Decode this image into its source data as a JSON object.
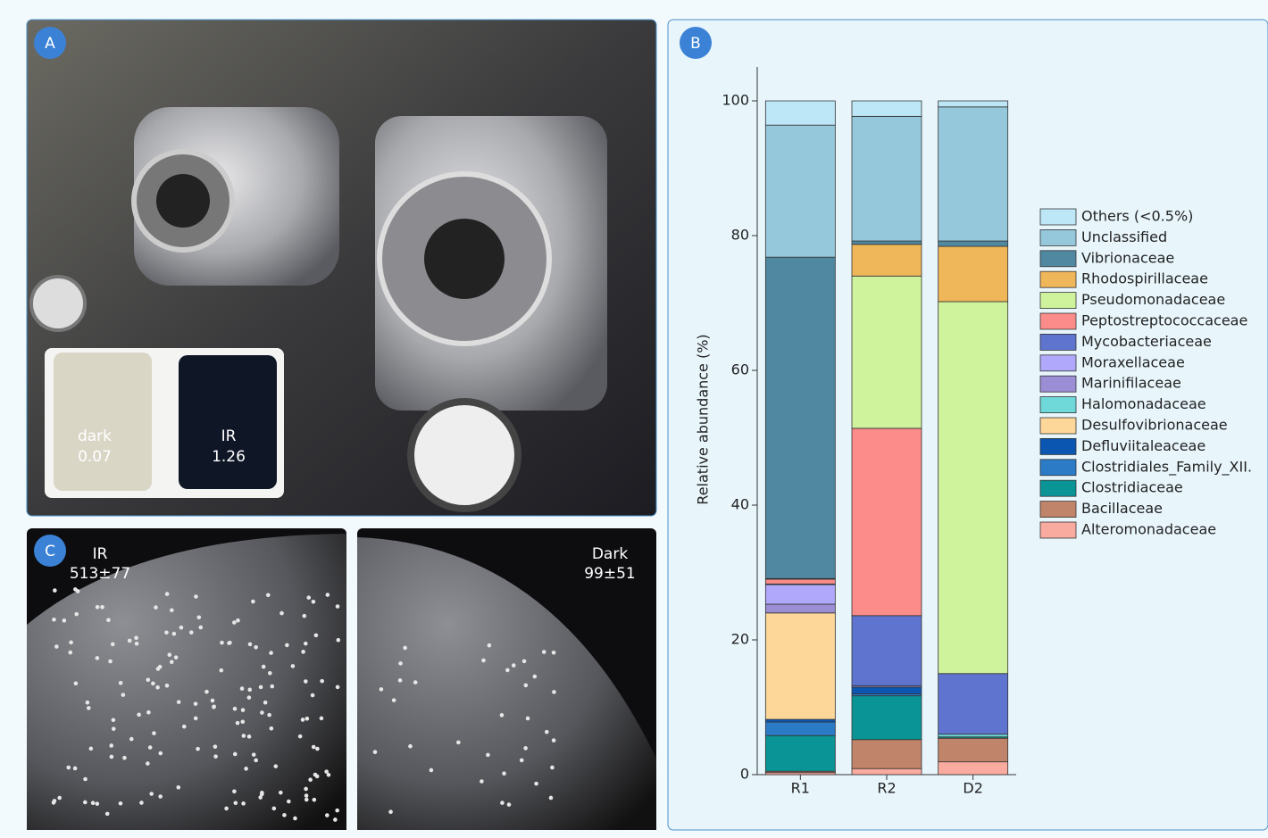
{
  "panels": {
    "a": {
      "label": "A",
      "inset": {
        "left_name": "dark",
        "left_value": "0.07",
        "right_name": "IR",
        "right_value": "1.26"
      }
    },
    "b": {
      "label": "B"
    },
    "c": {
      "label": "C",
      "left_name": "IR",
      "left_count": "513±77",
      "right_name": "Dark",
      "right_count": "99±51"
    }
  },
  "chart_data": {
    "type": "stacked_bar",
    "ylabel": "Relative abundance (%)",
    "categories": [
      "R1",
      "R2",
      "D2"
    ],
    "ylim": [
      0,
      100
    ],
    "yticks": [
      0,
      20,
      40,
      60,
      80,
      100
    ],
    "series": [
      {
        "name": "Others (<0.5%)",
        "color": "#bde6f7",
        "values": [
          3.6,
          2.3,
          0.9
        ]
      },
      {
        "name": "Unclassified",
        "color": "#96c8dc",
        "values": [
          19.6,
          18.5,
          19.9
        ]
      },
      {
        "name": "Vibrionaceae",
        "color": "#4f88a0",
        "values": [
          47.7,
          0.5,
          0.8
        ]
      },
      {
        "name": "Rhodospirillaceae",
        "color": "#f0b65a",
        "values": [
          0,
          4.7,
          8.2
        ]
      },
      {
        "name": "Pseudomonadaceae",
        "color": "#cff39c",
        "values": [
          0.1,
          22.6,
          55.2
        ]
      },
      {
        "name": "Peptostreptococcaceae",
        "color": "#fb8c8a",
        "values": [
          0.7,
          27.8,
          0
        ]
      },
      {
        "name": "Mycobacteriaceae",
        "color": "#5e74cf",
        "values": [
          0.1,
          10.4,
          9.0
        ]
      },
      {
        "name": "Moraxellaceae",
        "color": "#b0a8fb",
        "values": [
          2.9,
          0.2,
          0
        ]
      },
      {
        "name": "Marinifilaceae",
        "color": "#9b8ed4",
        "values": [
          1.3,
          0,
          0
        ]
      },
      {
        "name": "Halomonadaceae",
        "color": "#6fd8d8",
        "values": [
          0,
          0,
          0.4
        ]
      },
      {
        "name": "Desulfovibrionaceae",
        "color": "#fdd69a",
        "values": [
          15.8,
          0,
          0
        ]
      },
      {
        "name": "Defluviitaleaceae",
        "color": "#0b56b0",
        "values": [
          0.4,
          1.0,
          0
        ]
      },
      {
        "name": "Clostridiales_Family_XII.",
        "color": "#2b7bc6",
        "values": [
          2.0,
          0.3,
          0
        ]
      },
      {
        "name": "Clostridiaceae",
        "color": "#0b9496",
        "values": [
          5.3,
          6.5,
          0.2
        ]
      },
      {
        "name": "Bacillaceae",
        "color": "#c0846a",
        "values": [
          0.2,
          4.3,
          3.5
        ]
      },
      {
        "name": "Alteromonadaceae",
        "color": "#f9aba0",
        "values": [
          0.3,
          0.9,
          1.9
        ]
      }
    ]
  }
}
